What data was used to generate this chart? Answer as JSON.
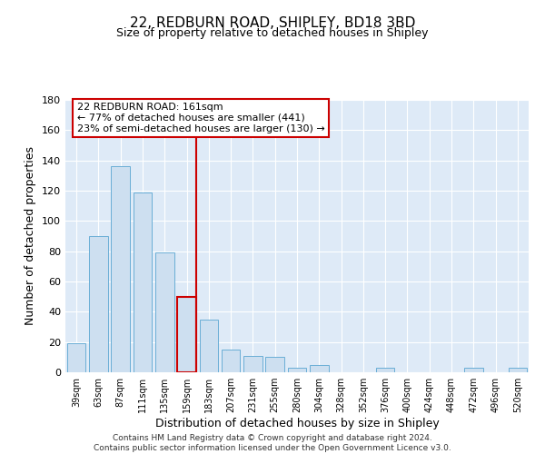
{
  "title": "22, REDBURN ROAD, SHIPLEY, BD18 3BD",
  "subtitle": "Size of property relative to detached houses in Shipley",
  "xlabel": "Distribution of detached houses by size in Shipley",
  "ylabel": "Number of detached properties",
  "bar_labels": [
    "39sqm",
    "63sqm",
    "87sqm",
    "111sqm",
    "135sqm",
    "159sqm",
    "183sqm",
    "207sqm",
    "231sqm",
    "255sqm",
    "280sqm",
    "304sqm",
    "328sqm",
    "352sqm",
    "376sqm",
    "400sqm",
    "424sqm",
    "448sqm",
    "472sqm",
    "496sqm",
    "520sqm"
  ],
  "bar_values": [
    19,
    90,
    136,
    119,
    79,
    50,
    35,
    15,
    11,
    10,
    3,
    5,
    0,
    0,
    3,
    0,
    0,
    0,
    3,
    0,
    3
  ],
  "bar_color": "#cddff0",
  "bar_edge_color": "#6aaed6",
  "highlight_bar_idx": 5,
  "highlight_color": "#cc0000",
  "annotation_line1": "22 REDBURN ROAD: 161sqm",
  "annotation_line2": "← 77% of detached houses are smaller (441)",
  "annotation_line3": "23% of semi-detached houses are larger (130) →",
  "annotation_box_color": "#ffffff",
  "annotation_box_edge_color": "#cc0000",
  "ylim": [
    0,
    180
  ],
  "yticks": [
    0,
    20,
    40,
    60,
    80,
    100,
    120,
    140,
    160,
    180
  ],
  "footer_line1": "Contains HM Land Registry data © Crown copyright and database right 2024.",
  "footer_line2": "Contains public sector information licensed under the Open Government Licence v3.0.",
  "plot_bg_color": "#deeaf7",
  "fig_bg_color": "#ffffff"
}
